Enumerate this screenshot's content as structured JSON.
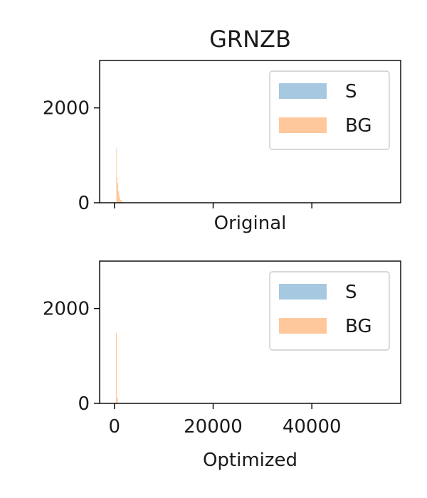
{
  "chart_data": {
    "type": "histogram",
    "title": "GRNZB",
    "colors": {
      "S": "#a6c8e0",
      "BG": "#ffc89c"
    },
    "x": {
      "lim": [
        -3000,
        58000
      ],
      "ticks": [
        0,
        20000,
        40000
      ],
      "tick_labels": [
        "0",
        "20000",
        "40000"
      ]
    },
    "y": {
      "lim": [
        0,
        3000
      ],
      "ticks": [
        0,
        2000
      ],
      "tick_labels": [
        "0",
        "2000"
      ]
    },
    "legend": {
      "placement": "upper right",
      "entries": [
        "S",
        "BG"
      ]
    },
    "panels": [
      {
        "xlabel": "Original",
        "show_x_tick_labels": false,
        "series": [
          {
            "name": "BG",
            "bins": [
              {
                "x0": 380,
                "x1": 480,
                "count": 1150
              },
              {
                "x0": 480,
                "x1": 600,
                "count": 540
              },
              {
                "x0": 600,
                "x1": 760,
                "count": 420
              },
              {
                "x0": 760,
                "x1": 940,
                "count": 250
              },
              {
                "x0": 940,
                "x1": 1150,
                "count": 130
              },
              {
                "x0": 1150,
                "x1": 1400,
                "count": 60
              },
              {
                "x0": 1400,
                "x1": 1800,
                "count": 20
              }
            ]
          },
          {
            "name": "S",
            "bins": []
          }
        ]
      },
      {
        "xlabel": "Optimized",
        "show_x_tick_labels": true,
        "series": [
          {
            "name": "BG",
            "bins": [
              {
                "x0": 300,
                "x1": 480,
                "count": 1480
              },
              {
                "x0": 480,
                "x1": 700,
                "count": 120
              }
            ]
          },
          {
            "name": "S",
            "bins": []
          }
        ]
      }
    ]
  }
}
